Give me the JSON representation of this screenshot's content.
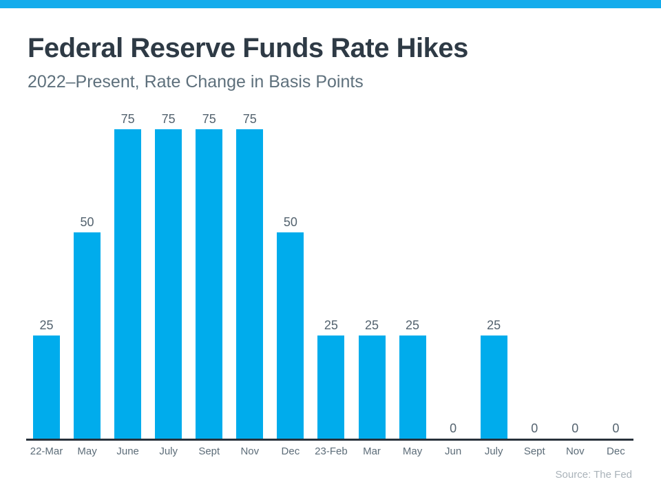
{
  "header": {
    "title": "Federal Reserve Funds Rate Hikes",
    "subtitle": "2022–Present, Rate Change in Basis Points"
  },
  "footer": {
    "source": "Source: The Fed"
  },
  "colors": {
    "top_strip": "#14ACEC",
    "bar": "#00ACEC",
    "title_text": "#2E3A45",
    "subtitle_text": "#5E707C",
    "value_label_text": "#53626E",
    "axis_label_text": "#5C6C78",
    "axis_line": "#28313A",
    "source_text": "#A9B2B9"
  },
  "chart_data": {
    "type": "bar",
    "title": "Federal Reserve Funds Rate Hikes",
    "subtitle": "2022–Present, Rate Change in Basis Points",
    "categories": [
      "22-Mar",
      "May",
      "June",
      "July",
      "Sept",
      "Nov",
      "Dec",
      "23-Feb",
      "Mar",
      "May",
      "Jun",
      "July",
      "Sept",
      "Nov",
      "Dec"
    ],
    "values": [
      25,
      50,
      75,
      75,
      75,
      75,
      50,
      25,
      25,
      25,
      0,
      25,
      0,
      0,
      0
    ],
    "xlabel": "",
    "ylabel": "",
    "ylim": [
      0,
      75
    ],
    "grid": false,
    "legend": false,
    "value_labels_shown": true,
    "source": "Source: The Fed"
  }
}
